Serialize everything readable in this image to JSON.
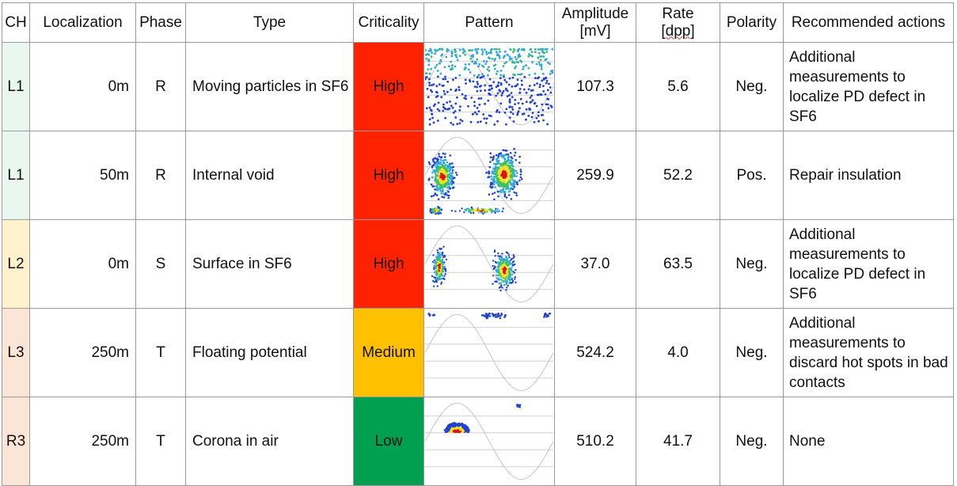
{
  "headers": {
    "ch": "CH",
    "localization": "Localization",
    "phase": "Phase",
    "type": "Type",
    "criticality": "Criticality",
    "pattern": "Pattern",
    "amplitude_line1": "Amplitude",
    "amplitude_line2": "[mV]",
    "rate_line1": "Rate",
    "rate_line2": "[dpp]",
    "polarity": "Polarity",
    "actions": "Recommended actions"
  },
  "colors": {
    "ch_L1": "#eaf6f0",
    "ch_L2": "#fff2cc",
    "ch_L3": "#fbe5d6",
    "ch_R3": "#fbe5d6",
    "high": "#ff2200",
    "medium": "#ffc000",
    "low": "#00a050"
  },
  "rows": [
    {
      "ch": "L1",
      "localization": "0m",
      "phase": "R",
      "type": "Moving particles in SF6",
      "criticality": "High",
      "criticality_color": "#ff2200",
      "pattern_icon": "scatter-pattern-moving-particles",
      "amplitude": "107.3",
      "rate": "5.6",
      "polarity": "Neg.",
      "actions": "Additional measurements to localize  PD defect in SF6"
    },
    {
      "ch": "L1",
      "localization": "50m",
      "phase": "R",
      "type": "Internal void",
      "criticality": "High",
      "criticality_color": "#ff2200",
      "pattern_icon": "scatter-pattern-internal-void",
      "amplitude": "259.9",
      "rate": "52.2",
      "polarity": "Pos.",
      "actions": "Repair insulation"
    },
    {
      "ch": "L2",
      "localization": "0m",
      "phase": "S",
      "type": "Surface in SF6",
      "criticality": "High",
      "criticality_color": "#ff2200",
      "pattern_icon": "scatter-pattern-surface",
      "amplitude": "37.0",
      "rate": "63.5",
      "polarity": "Neg.",
      "actions": "Additional measurements to localize  PD defect in SF6"
    },
    {
      "ch": "L3",
      "localization": "250m",
      "phase": "T",
      "type": "Floating potential",
      "criticality": "Medium",
      "criticality_color": "#ffc000",
      "pattern_icon": "scatter-pattern-floating",
      "amplitude": "524.2",
      "rate": "4.0",
      "polarity": "Neg.",
      "actions": "Additional measurements to discard hot spots in bad contacts"
    },
    {
      "ch": "R3",
      "localization": "250m",
      "phase": "T",
      "type": "Corona in air",
      "criticality": "Low",
      "criticality_color": "#00a050",
      "pattern_icon": "scatter-pattern-corona",
      "amplitude": "510.2",
      "rate": "41.7",
      "polarity": "Neg.",
      "actions": "None"
    }
  ]
}
